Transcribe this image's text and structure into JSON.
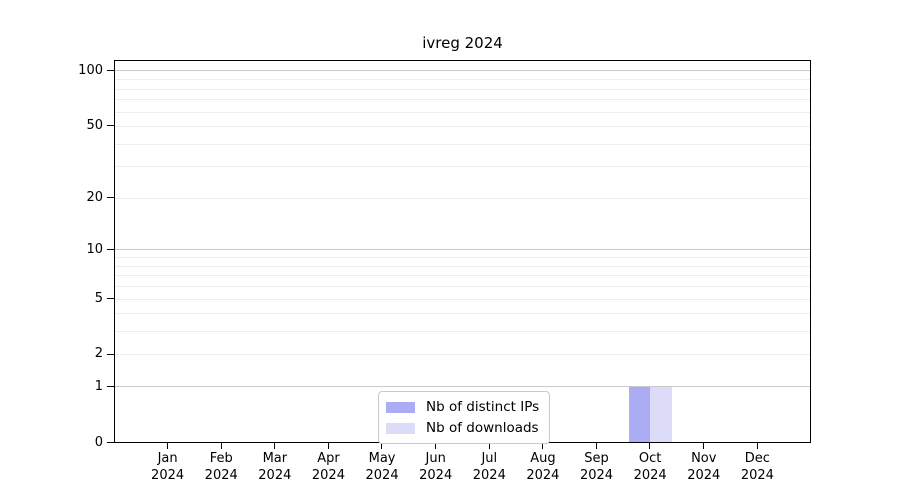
{
  "chart_data": {
    "type": "bar",
    "title": "ivreg 2024",
    "categories": [
      "Jan",
      "Feb",
      "Mar",
      "Apr",
      "May",
      "Jun",
      "Jul",
      "Aug",
      "Sep",
      "Oct",
      "Nov",
      "Dec"
    ],
    "x_year_line": "2024",
    "series": [
      {
        "name": "Nb of distinct IPs",
        "color": "#acacf4",
        "values": [
          0,
          0,
          0,
          0,
          0,
          0,
          0,
          0,
          0,
          1,
          0,
          0
        ]
      },
      {
        "name": "Nb of downloads",
        "color": "#dcdcf9",
        "values": [
          0,
          0,
          0,
          0,
          0,
          0,
          0,
          0,
          0,
          1,
          0,
          0
        ]
      }
    ],
    "y_scale": "log1p",
    "ylim": [
      0,
      100
    ],
    "y_ticks": [
      0,
      1,
      2,
      5,
      10,
      20,
      50,
      100
    ],
    "gridlines": {
      "major": [
        1,
        10,
        100
      ],
      "minor": [
        2,
        3,
        4,
        5,
        6,
        7,
        8,
        9,
        20,
        30,
        40,
        50,
        60,
        70,
        80,
        90
      ]
    },
    "grid": "horizontal",
    "legend_position": "lower center",
    "colors": {
      "major_grid": "#c9c9c9",
      "minor_grid": "#ededed",
      "axis": "#000000",
      "background": "#ffffff"
    }
  }
}
